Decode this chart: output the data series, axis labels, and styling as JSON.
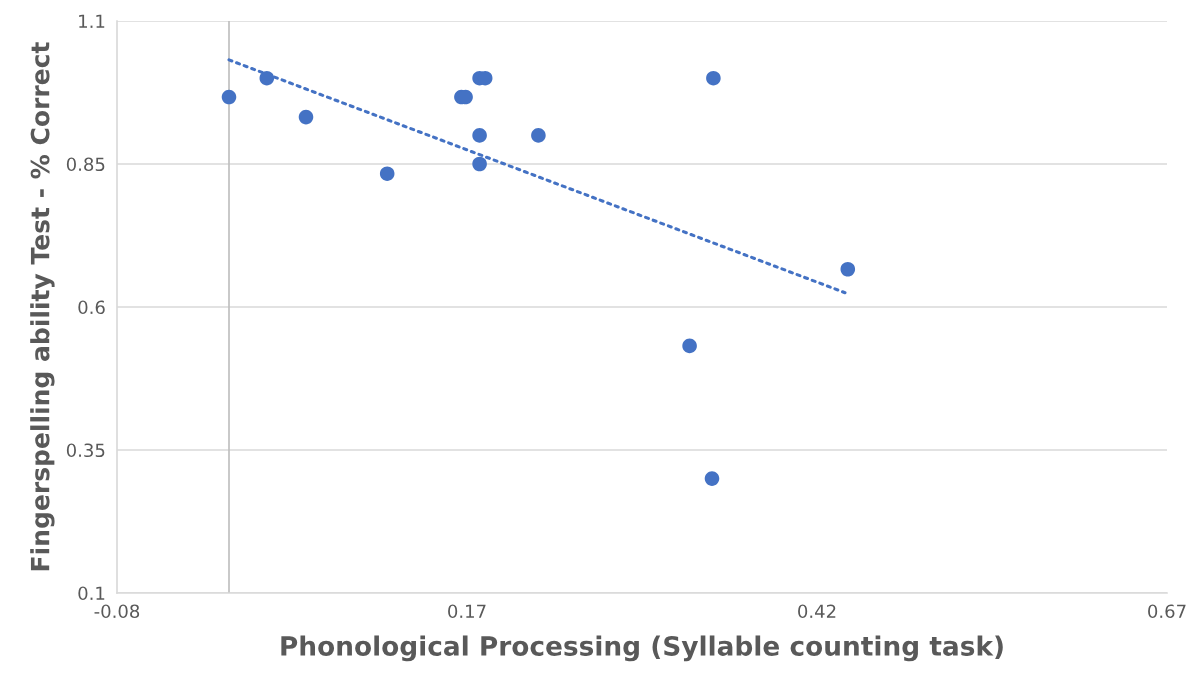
{
  "chart_data": {
    "type": "scatter",
    "xlabel": "Phonological Processing (Syllable counting task)",
    "ylabel": "Fingerspelling ability Test - % Correct",
    "series": [
      {
        "color": "#4472c4",
        "marker": "circle",
        "x": [
          0,
          0.027,
          0.055,
          0.113,
          0.166,
          0.169,
          0.179,
          0.183,
          0.179,
          0.179,
          0.221,
          0.346,
          0.329,
          0.345,
          0.442
        ],
        "values": [
          0.967,
          1.0,
          0.932,
          0.833,
          0.967,
          0.967,
          1.0,
          1.0,
          0.9,
          0.85,
          0.9,
          1.0,
          0.532,
          0.3,
          0.666
        ]
      },
      {
        "type": "line",
        "color": "#4472c4",
        "line_style": "dotted",
        "x": [
          0,
          0.44
        ],
        "values": [
          1.032,
          0.625
        ]
      }
    ],
    "xlim": [
      -0.08,
      0.67
    ],
    "xticks": [
      -0.08,
      0.17,
      0.42,
      0.67
    ],
    "ylim": [
      0.1,
      1.1
    ],
    "yticks": [
      0.1,
      0.35,
      0.6,
      0.85,
      1.1
    ],
    "ref_lines": [
      {
        "axis": "x",
        "value": 0,
        "color": "#bfbfbf"
      }
    ],
    "grid": "y",
    "legend": false
  }
}
